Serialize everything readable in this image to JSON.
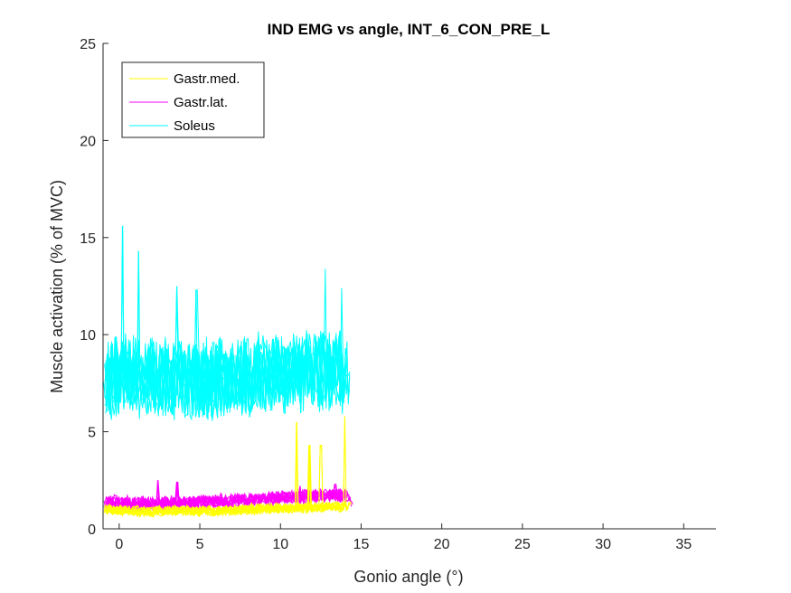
{
  "chart_data": {
    "type": "line",
    "title": "IND EMG vs angle, INT_6_CON_PRE_L",
    "xlabel": "Gonio angle (°)",
    "ylabel": "Muscle activation (% of MVC)",
    "xlim": [
      -1,
      37
    ],
    "ylim": [
      0,
      25
    ],
    "xticks": [
      0,
      5,
      10,
      15,
      20,
      25,
      30,
      35
    ],
    "yticks": [
      0,
      5,
      10,
      15,
      20,
      25
    ],
    "grid": false,
    "legend_position": "top-left",
    "x_range_of_data": [
      -1,
      14.5
    ],
    "series": [
      {
        "name": "Gastr.med.",
        "color": "#ffff00",
        "traces": 10,
        "baseline": [
          [
            -1,
            1.0
          ],
          [
            0,
            0.95
          ],
          [
            2,
            0.9
          ],
          [
            4,
            0.95
          ],
          [
            6,
            0.9
          ],
          [
            8,
            1.0
          ],
          [
            10,
            1.05
          ],
          [
            12,
            1.1
          ],
          [
            14,
            1.15
          ],
          [
            14.5,
            1.2
          ]
        ],
        "jitter": 0.25,
        "spikes": [
          [
            11.0,
            5.5
          ],
          [
            11.8,
            4.3
          ],
          [
            12.5,
            4.3
          ],
          [
            14.0,
            5.8
          ]
        ]
      },
      {
        "name": "Gastr.lat.",
        "color": "#ff00ff",
        "traces": 10,
        "baseline": [
          [
            -1,
            1.4
          ],
          [
            0,
            1.35
          ],
          [
            2,
            1.3
          ],
          [
            4,
            1.35
          ],
          [
            6,
            1.4
          ],
          [
            8,
            1.5
          ],
          [
            10,
            1.6
          ],
          [
            12,
            1.7
          ],
          [
            14,
            1.75
          ],
          [
            14.5,
            1.4
          ]
        ],
        "jitter": 0.35,
        "spikes": [
          [
            2.4,
            2.5
          ],
          [
            3.6,
            2.4
          ],
          [
            11.2,
            2.2
          ],
          [
            13.4,
            2.3
          ]
        ]
      },
      {
        "name": "Soleus",
        "color": "#00ffff",
        "traces": 10,
        "baseline": [
          [
            -1,
            7.5
          ],
          [
            0,
            8.0
          ],
          [
            2,
            7.7
          ],
          [
            4,
            7.8
          ],
          [
            6,
            7.6
          ],
          [
            8,
            7.8
          ],
          [
            10,
            8.0
          ],
          [
            12,
            8.2
          ],
          [
            14,
            8.0
          ],
          [
            14.5,
            7.0
          ]
        ],
        "jitter": 2.0,
        "spikes": [
          [
            0.2,
            15.6
          ],
          [
            1.2,
            14.3
          ],
          [
            3.6,
            12.5
          ],
          [
            4.8,
            12.3
          ],
          [
            12.8,
            13.4
          ],
          [
            13.8,
            12.4
          ]
        ]
      }
    ]
  }
}
